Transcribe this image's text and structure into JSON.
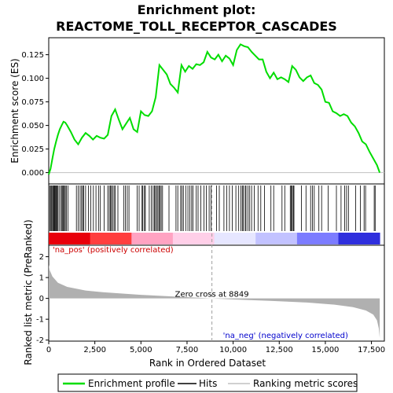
{
  "chart_data": {
    "type": "line",
    "title_line1": "Enrichment plot:",
    "title_line2": "REACTOME_TOLL_RECEPTOR_CASCADES",
    "es_panel": {
      "ylabel": "Enrichment score (ES)",
      "ylim": [
        -0.012,
        0.143
      ],
      "yticks": [
        0.0,
        0.025,
        0.05,
        0.075,
        0.1,
        0.125
      ],
      "ytick_labels": [
        "0.000",
        "0.025",
        "0.050",
        "0.075",
        "0.100",
        "0.125"
      ],
      "series": [
        {
          "name": "Enrichment profile",
          "color": "#00dd00",
          "x": [
            0,
            100,
            200,
            300,
            400,
            500,
            600,
            700,
            800,
            900,
            1000,
            1200,
            1400,
            1600,
            1800,
            2000,
            2200,
            2400,
            2600,
            2800,
            3000,
            3200,
            3400,
            3600,
            3800,
            4000,
            4200,
            4400,
            4600,
            4800,
            5000,
            5200,
            5400,
            5600,
            5800,
            6000,
            6200,
            6400,
            6600,
            6800,
            7000,
            7200,
            7400,
            7600,
            7800,
            8000,
            8200,
            8400,
            8600,
            8800,
            9000,
            9200,
            9400,
            9600,
            9800,
            10000,
            10200,
            10400,
            10600,
            10800,
            11000,
            11200,
            11400,
            11600,
            11800,
            12000,
            12200,
            12400,
            12600,
            12800,
            13000,
            13200,
            13400,
            13600,
            13800,
            14000,
            14200,
            14400,
            14600,
            14800,
            15000,
            15200,
            15400,
            15600,
            15800,
            16000,
            16200,
            16400,
            16600,
            16800,
            17000,
            17200,
            17400,
            17600,
            17800,
            17950
          ],
          "y": [
            -0.002,
            0.004,
            0.015,
            0.025,
            0.033,
            0.04,
            0.046,
            0.05,
            0.054,
            0.053,
            0.05,
            0.043,
            0.035,
            0.03,
            0.037,
            0.042,
            0.039,
            0.035,
            0.039,
            0.037,
            0.036,
            0.04,
            0.06,
            0.067,
            0.056,
            0.046,
            0.052,
            0.058,
            0.046,
            0.043,
            0.065,
            0.061,
            0.06,
            0.065,
            0.08,
            0.114,
            0.109,
            0.104,
            0.094,
            0.09,
            0.085,
            0.114,
            0.107,
            0.113,
            0.11,
            0.115,
            0.114,
            0.117,
            0.128,
            0.122,
            0.12,
            0.125,
            0.118,
            0.124,
            0.121,
            0.114,
            0.13,
            0.136,
            0.134,
            0.133,
            0.128,
            0.124,
            0.12,
            0.12,
            0.107,
            0.1,
            0.106,
            0.099,
            0.101,
            0.099,
            0.096,
            0.113,
            0.109,
            0.101,
            0.097,
            0.101,
            0.103,
            0.095,
            0.093,
            0.088,
            0.075,
            0.074,
            0.065,
            0.063,
            0.06,
            0.062,
            0.06,
            0.053,
            0.049,
            0.042,
            0.033,
            0.03,
            0.022,
            0.015,
            0.008,
            0.0
          ]
        }
      ]
    },
    "hits_panel": {
      "hit_positions": [
        60,
        120,
        160,
        210,
        260,
        290,
        330,
        360,
        400,
        450,
        480,
        560,
        640,
        710,
        760,
        800,
        850,
        900,
        960,
        1040,
        1500,
        1600,
        1700,
        1780,
        1840,
        1900,
        2000,
        2150,
        2280,
        2420,
        2560,
        2700,
        2800,
        3000,
        3200,
        3280,
        3340,
        3400,
        3460,
        3540,
        3600,
        3750,
        4060,
        4150,
        4260,
        4350,
        4800,
        4900,
        5060,
        5100,
        5190,
        5240,
        5450,
        5560,
        5660,
        5730,
        5790,
        5850,
        5920,
        5980,
        6040,
        6100,
        6170,
        6520,
        6900,
        7000,
        7150,
        7230,
        7300,
        7430,
        7550,
        7650,
        7750,
        7820,
        8000,
        8100,
        8250,
        8420,
        8550,
        8700,
        8800,
        9100,
        9250,
        9500,
        9650,
        9800,
        9950,
        10150,
        10300,
        10420,
        10500,
        10550,
        10650,
        10700,
        10800,
        10900,
        11000,
        11150,
        11350,
        11500,
        11700,
        12050,
        12200,
        12650,
        12800,
        13100,
        13150,
        13200,
        13260,
        13300,
        13700,
        13950,
        14200,
        14300,
        14400,
        14650,
        14800,
        15150,
        15600,
        15850,
        16050,
        16150,
        16250,
        16650,
        16900,
        17100,
        17180,
        17650,
        17700
      ],
      "band_colors": [
        "#e8000b",
        "#ff3e3e",
        "#ffa3c2",
        "#ffcfe8",
        "#e6e6ff",
        "#c2c2ff",
        "#7c7cff",
        "#2f2fdd"
      ]
    },
    "metric_panel": {
      "ylabel": "Ranked list metric (PreRanked)",
      "xlabel": "Rank in Ordered Dataset",
      "ylim": [
        -2.05,
        2.55
      ],
      "yticks": [
        -2,
        -1,
        0,
        1,
        2
      ],
      "ytick_labels": [
        "-2",
        "-1",
        "0",
        "1",
        "2"
      ],
      "xlim": [
        0,
        18200
      ],
      "xticks": [
        0,
        2500,
        5000,
        7500,
        10000,
        12500,
        15000,
        17500
      ],
      "xtick_labels": [
        "0",
        "2,500",
        "5,000",
        "7,500",
        "10,000",
        "12,500",
        "15,000",
        "17,500"
      ],
      "profile": {
        "x": [
          0,
          50,
          200,
          500,
          1000,
          2000,
          3000,
          5000,
          7000,
          8849,
          10000,
          12000,
          14000,
          15500,
          16500,
          17200,
          17600,
          17800,
          17900,
          17950
        ],
        "y": [
          1.62,
          1.35,
          1.05,
          0.75,
          0.55,
          0.38,
          0.29,
          0.17,
          0.08,
          0.0,
          -0.05,
          -0.12,
          -0.2,
          -0.3,
          -0.42,
          -0.58,
          -0.78,
          -1.05,
          -1.45,
          -1.9
        ]
      },
      "zero_cross_label": "Zero cross at 8849",
      "zero_cross": 8849,
      "pos_label": "'na_pos' (positively correlated)",
      "neg_label": "'na_neg' (negatively correlated)"
    },
    "legend": [
      {
        "label": "Enrichment profile",
        "kind": "line",
        "color": "#00dd00"
      },
      {
        "label": "Hits",
        "kind": "line",
        "color": "#000000"
      },
      {
        "label": "Ranking metric scores",
        "kind": "line",
        "color": "#c0c0c0"
      }
    ]
  }
}
